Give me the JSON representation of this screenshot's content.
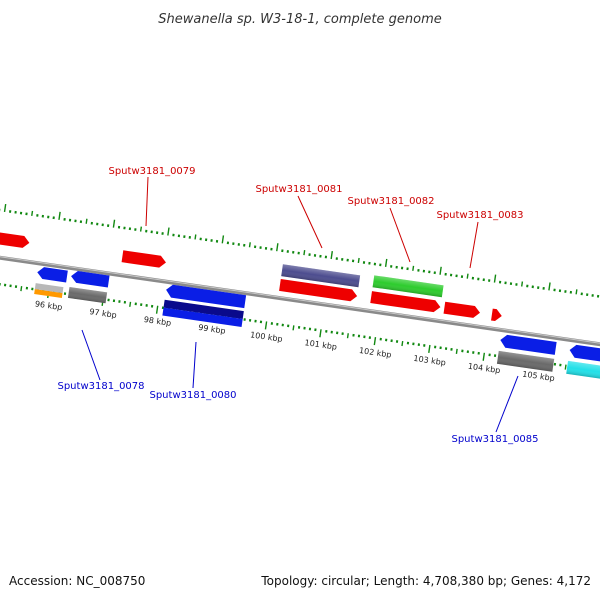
{
  "title": "Shewanella sp. W3-18-1, complete genome",
  "footer": {
    "accession": "Accession: NC_008750",
    "summary": "Topology: circular; Length: 4,708,380 bp; Genes: 4,172"
  },
  "axis": {
    "unit": "kbp",
    "labels": [
      "96 kbp",
      "97 kbp",
      "98 kbp",
      "99 kbp",
      "100 kbp",
      "101 kbp",
      "102 kbp",
      "103 kbp",
      "104 kbp",
      "105 kbp"
    ]
  },
  "colors": {
    "backbone": "#888888",
    "ticks_major": "#118811",
    "ticks_minor": "#118811",
    "label_forward": "#cc0000",
    "label_reverse": "#0000cc",
    "red": "#ee0000",
    "blue": "#0a1ee6",
    "navy": "#0a0a8c",
    "slate": "#4d4d8f",
    "green": "#2ecc2e",
    "gray": "#6a6a6a",
    "lightgray": "#b8b8b8",
    "orange": "#ff9900",
    "cyan": "#22e0e8"
  },
  "gene_labels": [
    {
      "id": "Sputw3181_0079",
      "strand": "forward"
    },
    {
      "id": "Sputw3181_0081",
      "strand": "forward"
    },
    {
      "id": "Sputw3181_0082",
      "strand": "forward"
    },
    {
      "id": "Sputw3181_0083",
      "strand": "forward"
    },
    {
      "id": "Sputw3181_0078",
      "strand": "reverse"
    },
    {
      "id": "Sputw3181_0080",
      "strand": "reverse"
    },
    {
      "id": "Sputw3181_0085",
      "strand": "reverse"
    }
  ]
}
